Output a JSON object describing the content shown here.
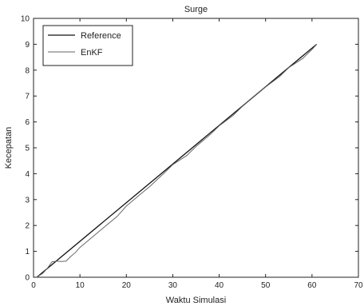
{
  "chart_data": {
    "type": "line",
    "title": "Surge",
    "xlabel": "Waktu Simulasi",
    "ylabel": "Kecepatan",
    "xlim": [
      0,
      70
    ],
    "ylim": [
      0,
      10
    ],
    "xticks": [
      0,
      10,
      20,
      30,
      40,
      50,
      60,
      70
    ],
    "yticks": [
      0,
      1,
      2,
      3,
      4,
      5,
      6,
      7,
      8,
      9,
      10
    ],
    "grid": false,
    "legend_position": "top-left",
    "series": [
      {
        "name": "Reference",
        "color": "#111111",
        "x": [
          0.7,
          61
        ],
        "y": [
          0,
          9
        ]
      },
      {
        "name": "EnKF",
        "color": "#666666",
        "x": [
          0.7,
          2,
          3,
          4,
          5,
          6,
          7,
          8,
          9,
          10,
          12,
          15,
          18,
          20,
          23,
          25,
          28,
          30,
          33,
          35,
          38,
          40,
          43,
          45,
          48,
          50,
          53,
          55,
          58,
          60,
          61
        ],
        "y": [
          0,
          0.15,
          0.35,
          0.6,
          0.62,
          0.61,
          0.62,
          0.8,
          0.95,
          1.15,
          1.45,
          1.9,
          2.35,
          2.75,
          3.2,
          3.5,
          4.0,
          4.35,
          4.7,
          5.05,
          5.5,
          5.85,
          6.25,
          6.6,
          7.05,
          7.35,
          7.75,
          8.1,
          8.45,
          8.8,
          9.0
        ]
      }
    ]
  }
}
